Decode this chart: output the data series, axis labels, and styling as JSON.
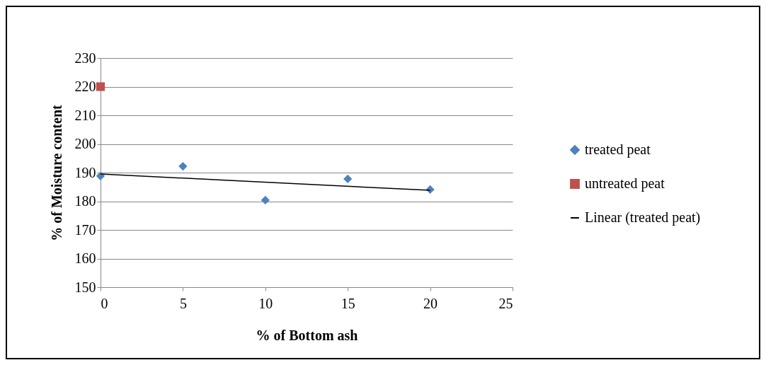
{
  "chart_data": {
    "type": "scatter",
    "xlabel": "% of Bottom ash",
    "ylabel": "% of Moisture content",
    "xlim": [
      0,
      25
    ],
    "xticks": [
      0,
      5,
      10,
      15,
      20,
      25
    ],
    "ylim": [
      150,
      230
    ],
    "yticks": [
      150,
      160,
      170,
      180,
      190,
      200,
      210,
      220,
      230
    ],
    "grid": "y",
    "legend": "right",
    "series": [
      {
        "name": "treated peat",
        "marker": "diamond",
        "color": "#4f81bd",
        "x": [
          0,
          5,
          10,
          15,
          20
        ],
        "values": [
          188.8,
          192.2,
          180.4,
          187.8,
          184.1
        ]
      },
      {
        "name": "untreated peat",
        "marker": "square",
        "color": "#c0504d",
        "x": [
          0
        ],
        "values": [
          220
        ]
      },
      {
        "name": "Linear (treated peat)",
        "type": "line",
        "marker": "none",
        "color": "#000000",
        "x": [
          0,
          20
        ],
        "values": [
          189.5,
          183.8
        ]
      }
    ]
  }
}
